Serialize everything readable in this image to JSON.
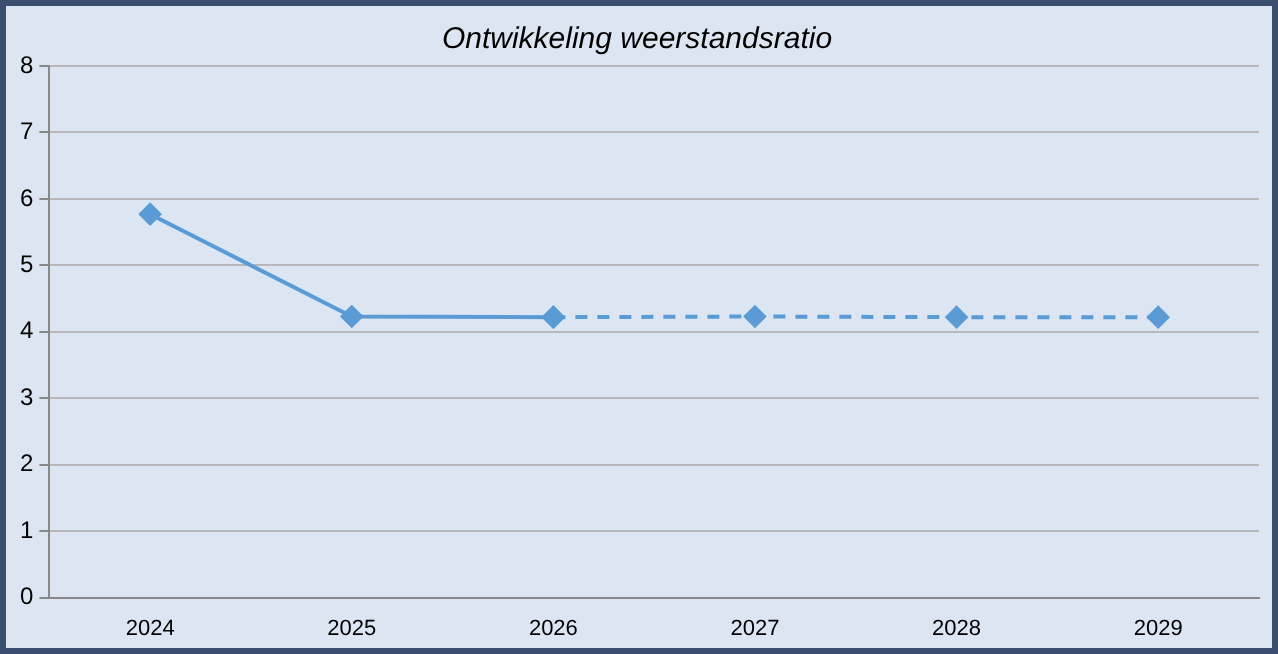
{
  "chart_data": {
    "type": "line",
    "title": "Ontwikkeling weerstandsratio",
    "categories": [
      "2024",
      "2025",
      "2026",
      "2027",
      "2028",
      "2029"
    ],
    "series": [
      {
        "color": "#5b9bd5",
        "values": [
          5.77,
          4.23,
          4.22,
          null,
          null,
          null
        ],
        "line_style": "solid"
      },
      {
        "color": "#5b9bd5",
        "values": [
          null,
          null,
          4.22,
          4.23,
          4.22,
          4.22
        ],
        "line_style": "dashed"
      }
    ],
    "ylim": [
      0,
      8
    ],
    "yticks": [
      0,
      1,
      2,
      3,
      4,
      5,
      6,
      7,
      8
    ],
    "grid": "y",
    "legend": false,
    "marker": "diamond"
  }
}
